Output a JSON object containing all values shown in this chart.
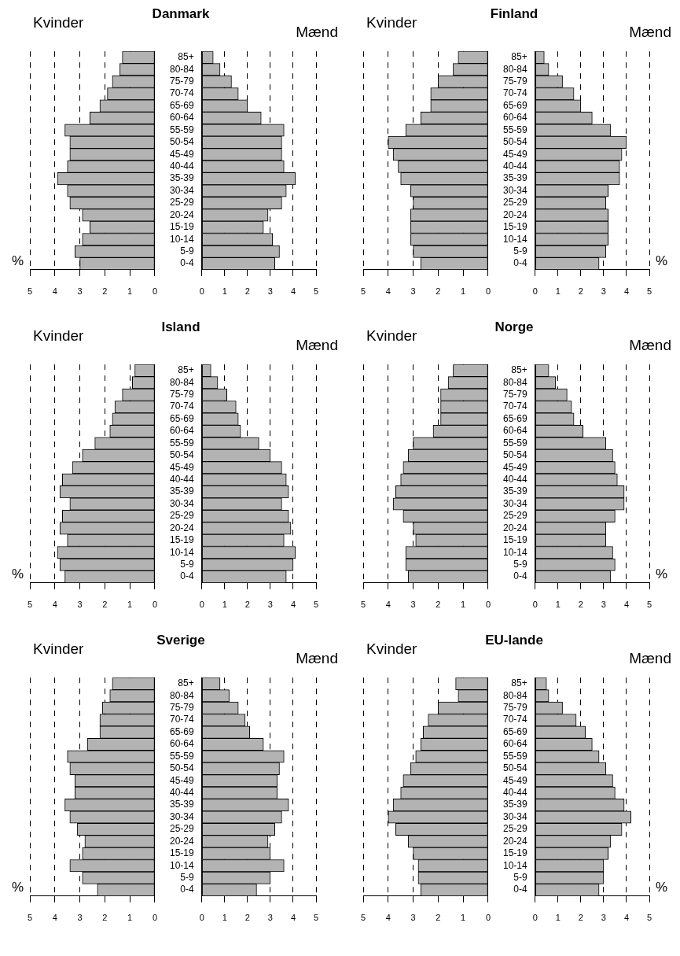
{
  "chart_data": [
    {
      "type": "bar",
      "orientation": "horizontal",
      "title": "Danmark",
      "xlabel": "%",
      "categories": [
        null,
        null,
        null,
        null,
        null,
        null,
        null,
        null,
        null,
        null,
        null,
        null,
        null,
        null,
        null,
        null,
        null,
        null
      ],
      "xlim": [
        5,
        0
      ],
      "xticks": [
        5,
        4,
        3,
        2,
        1,
        0
      ],
      "grid": "x",
      "series": [
        {
          "name": "Kvinder",
          "color": "#b3b3b3",
          "values": [
            1.3,
            1.4,
            1.7,
            1.9,
            2.2,
            2.6,
            3.6,
            3.4,
            3.4,
            3.5,
            3.9,
            3.5,
            3.4,
            2.9,
            2.6,
            2.9,
            3.2,
            3.0
          ]
        }
      ]
    },
    {
      "type": "bar",
      "orientation": "horizontal",
      "categories": [
        "85+",
        "80-84",
        "75-79",
        "70-74",
        "65-69",
        "60-64",
        "55-59",
        "50-54",
        "45-49",
        "40-44",
        "35-39",
        "30-34",
        "25-29",
        "20-24",
        "15-19",
        "10-14",
        "5-9",
        "0-4"
      ],
      "xlim": [
        0,
        5
      ],
      "xticks": [
        0,
        1,
        2,
        3,
        4,
        5
      ],
      "grid": "x",
      "series": [
        {
          "name": "Mænd",
          "color": "#b3b3b3",
          "values": [
            0.5,
            0.8,
            1.3,
            1.6,
            2.0,
            2.6,
            3.6,
            3.5,
            3.5,
            3.6,
            4.1,
            3.7,
            3.5,
            2.9,
            2.7,
            3.1,
            3.4,
            3.2
          ]
        }
      ]
    },
    {
      "type": "bar",
      "orientation": "horizontal",
      "title": "Finland",
      "categories": [
        null,
        null,
        null,
        null,
        null,
        null,
        null,
        null,
        null,
        null,
        null,
        null,
        null,
        null,
        null,
        null,
        null,
        null
      ],
      "xlim": [
        5,
        0
      ],
      "xticks": [
        5,
        4,
        3,
        2,
        1,
        0
      ],
      "grid": "x",
      "series": [
        {
          "name": "Kvinder",
          "color": "#b3b3b3",
          "values": [
            1.2,
            1.4,
            2.0,
            2.3,
            2.3,
            2.7,
            3.3,
            4.0,
            3.8,
            3.6,
            3.5,
            3.1,
            3.0,
            3.1,
            3.1,
            3.1,
            3.0,
            2.7
          ]
        }
      ]
    },
    {
      "type": "bar",
      "orientation": "horizontal",
      "xlabel": "%",
      "categories": [
        "85+",
        "80-84",
        "75-79",
        "70-74",
        "65-69",
        "60-64",
        "55-59",
        "50-54",
        "45-49",
        "40-44",
        "35-39",
        "30-34",
        "25-29",
        "20-24",
        "15-19",
        "10-14",
        "5-9",
        "0-4"
      ],
      "xlim": [
        0,
        5
      ],
      "xticks": [
        0,
        1,
        2,
        3,
        4,
        5
      ],
      "grid": "x",
      "series": [
        {
          "name": "Mænd",
          "color": "#b3b3b3",
          "values": [
            0.4,
            0.6,
            1.2,
            1.7,
            2.0,
            2.5,
            3.3,
            4.0,
            3.8,
            3.7,
            3.7,
            3.2,
            3.1,
            3.2,
            3.2,
            3.2,
            3.1,
            2.8
          ]
        }
      ]
    },
    {
      "type": "bar",
      "orientation": "horizontal",
      "title": "Island",
      "xlabel": "%",
      "categories": [
        null,
        null,
        null,
        null,
        null,
        null,
        null,
        null,
        null,
        null,
        null,
        null,
        null,
        null,
        null,
        null,
        null,
        null
      ],
      "xlim": [
        5,
        0
      ],
      "xticks": [
        5,
        4,
        3,
        2,
        1,
        0
      ],
      "grid": "x",
      "series": [
        {
          "name": "Kvinder",
          "color": "#b3b3b3",
          "values": [
            0.8,
            0.9,
            1.3,
            1.6,
            1.7,
            1.8,
            2.4,
            2.9,
            3.3,
            3.7,
            3.8,
            3.4,
            3.7,
            3.8,
            3.5,
            3.9,
            3.8,
            3.6
          ]
        }
      ]
    },
    {
      "type": "bar",
      "orientation": "horizontal",
      "categories": [
        "85+",
        "80-84",
        "75-79",
        "70-74",
        "65-69",
        "60-64",
        "55-59",
        "50-54",
        "45-49",
        "40-44",
        "35-39",
        "30-34",
        "25-29",
        "20-24",
        "15-19",
        "10-14",
        "5-9",
        "0-4"
      ],
      "xlim": [
        0,
        5
      ],
      "xticks": [
        0,
        1,
        2,
        3,
        4,
        5
      ],
      "grid": "x",
      "series": [
        {
          "name": "Mænd",
          "color": "#b3b3b3",
          "values": [
            0.4,
            0.7,
            1.1,
            1.5,
            1.6,
            1.7,
            2.5,
            3.0,
            3.5,
            3.7,
            3.8,
            3.5,
            3.8,
            3.9,
            3.6,
            4.1,
            4.0,
            3.7
          ]
        }
      ]
    },
    {
      "type": "bar",
      "orientation": "horizontal",
      "title": "Norge",
      "categories": [
        null,
        null,
        null,
        null,
        null,
        null,
        null,
        null,
        null,
        null,
        null,
        null,
        null,
        null,
        null,
        null,
        null,
        null
      ],
      "xlim": [
        5,
        0
      ],
      "xticks": [
        5,
        4,
        3,
        2,
        1,
        0
      ],
      "grid": "x",
      "series": [
        {
          "name": "Kvinder",
          "color": "#b3b3b3",
          "values": [
            1.4,
            1.6,
            1.9,
            1.9,
            1.9,
            2.2,
            3.0,
            3.2,
            3.4,
            3.5,
            3.7,
            3.8,
            3.4,
            3.0,
            2.9,
            3.3,
            3.3,
            3.2
          ]
        }
      ]
    },
    {
      "type": "bar",
      "orientation": "horizontal",
      "xlabel": "%",
      "categories": [
        "85+",
        "80-84",
        "75-79",
        "70-74",
        "65-69",
        "60-64",
        "55-59",
        "50-54",
        "45-49",
        "40-44",
        "35-39",
        "30-34",
        "25-29",
        "20-24",
        "15-19",
        "10-14",
        "5-9",
        "0-4"
      ],
      "xlim": [
        0,
        5
      ],
      "xticks": [
        0,
        1,
        2,
        3,
        4,
        5
      ],
      "grid": "x",
      "series": [
        {
          "name": "Mænd",
          "color": "#b3b3b3",
          "values": [
            0.6,
            0.9,
            1.4,
            1.6,
            1.7,
            2.1,
            3.1,
            3.4,
            3.5,
            3.6,
            3.9,
            3.9,
            3.5,
            3.1,
            3.1,
            3.4,
            3.5,
            3.3
          ]
        }
      ]
    },
    {
      "type": "bar",
      "orientation": "horizontal",
      "title": "Sverige",
      "xlabel": "%",
      "categories": [
        null,
        null,
        null,
        null,
        null,
        null,
        null,
        null,
        null,
        null,
        null,
        null,
        null,
        null,
        null,
        null,
        null,
        null
      ],
      "xlim": [
        5,
        0
      ],
      "xticks": [
        5,
        4,
        3,
        2,
        1,
        0
      ],
      "grid": "x",
      "series": [
        {
          "name": "Kvinder",
          "color": "#b3b3b3",
          "values": [
            1.7,
            1.8,
            2.1,
            2.2,
            2.2,
            2.7,
            3.5,
            3.4,
            3.2,
            3.2,
            3.6,
            3.4,
            3.1,
            2.8,
            2.9,
            3.4,
            2.9,
            2.3
          ]
        }
      ]
    },
    {
      "type": "bar",
      "orientation": "horizontal",
      "categories": [
        "85+",
        "80-84",
        "75-79",
        "70-74",
        "65-69",
        "60-64",
        "55-59",
        "50-54",
        "45-49",
        "40-44",
        "35-39",
        "30-34",
        "25-29",
        "20-24",
        "15-19",
        "10-14",
        "5-9",
        "0-4"
      ],
      "xlim": [
        0,
        5
      ],
      "xticks": [
        0,
        1,
        2,
        3,
        4,
        5
      ],
      "grid": "x",
      "series": [
        {
          "name": "Mænd",
          "color": "#b3b3b3",
          "values": [
            0.8,
            1.2,
            1.6,
            1.9,
            2.1,
            2.7,
            3.6,
            3.4,
            3.3,
            3.3,
            3.8,
            3.5,
            3.2,
            2.9,
            3.0,
            3.6,
            3.0,
            2.4
          ]
        }
      ]
    },
    {
      "type": "bar",
      "orientation": "horizontal",
      "title": "EU-lande",
      "categories": [
        null,
        null,
        null,
        null,
        null,
        null,
        null,
        null,
        null,
        null,
        null,
        null,
        null,
        null,
        null,
        null,
        null,
        null
      ],
      "xlim": [
        5,
        0
      ],
      "xticks": [
        5,
        4,
        3,
        2,
        1,
        0
      ],
      "grid": "x",
      "series": [
        {
          "name": "Kvinder",
          "color": "#b3b3b3",
          "values": [
            1.3,
            1.2,
            2.0,
            2.4,
            2.6,
            2.7,
            2.9,
            3.1,
            3.4,
            3.5,
            3.8,
            4.0,
            3.7,
            3.2,
            3.0,
            2.8,
            2.8,
            2.7
          ]
        }
      ]
    },
    {
      "type": "bar",
      "orientation": "horizontal",
      "xlabel": "%",
      "categories": [
        "85+",
        "80-84",
        "75-79",
        "70-74",
        "65-69",
        "60-64",
        "55-59",
        "50-54",
        "45-49",
        "40-44",
        "35-39",
        "30-34",
        "25-29",
        "20-24",
        "15-19",
        "10-14",
        "5-9",
        "0-4"
      ],
      "xlim": [
        0,
        5
      ],
      "xticks": [
        0,
        1,
        2,
        3,
        4,
        5
      ],
      "grid": "x",
      "series": [
        {
          "name": "Mænd",
          "color": "#b3b3b3",
          "values": [
            0.5,
            0.6,
            1.2,
            1.8,
            2.2,
            2.5,
            2.8,
            3.1,
            3.4,
            3.5,
            3.9,
            4.2,
            3.8,
            3.3,
            3.2,
            3.0,
            3.0,
            2.8
          ]
        }
      ]
    }
  ]
}
